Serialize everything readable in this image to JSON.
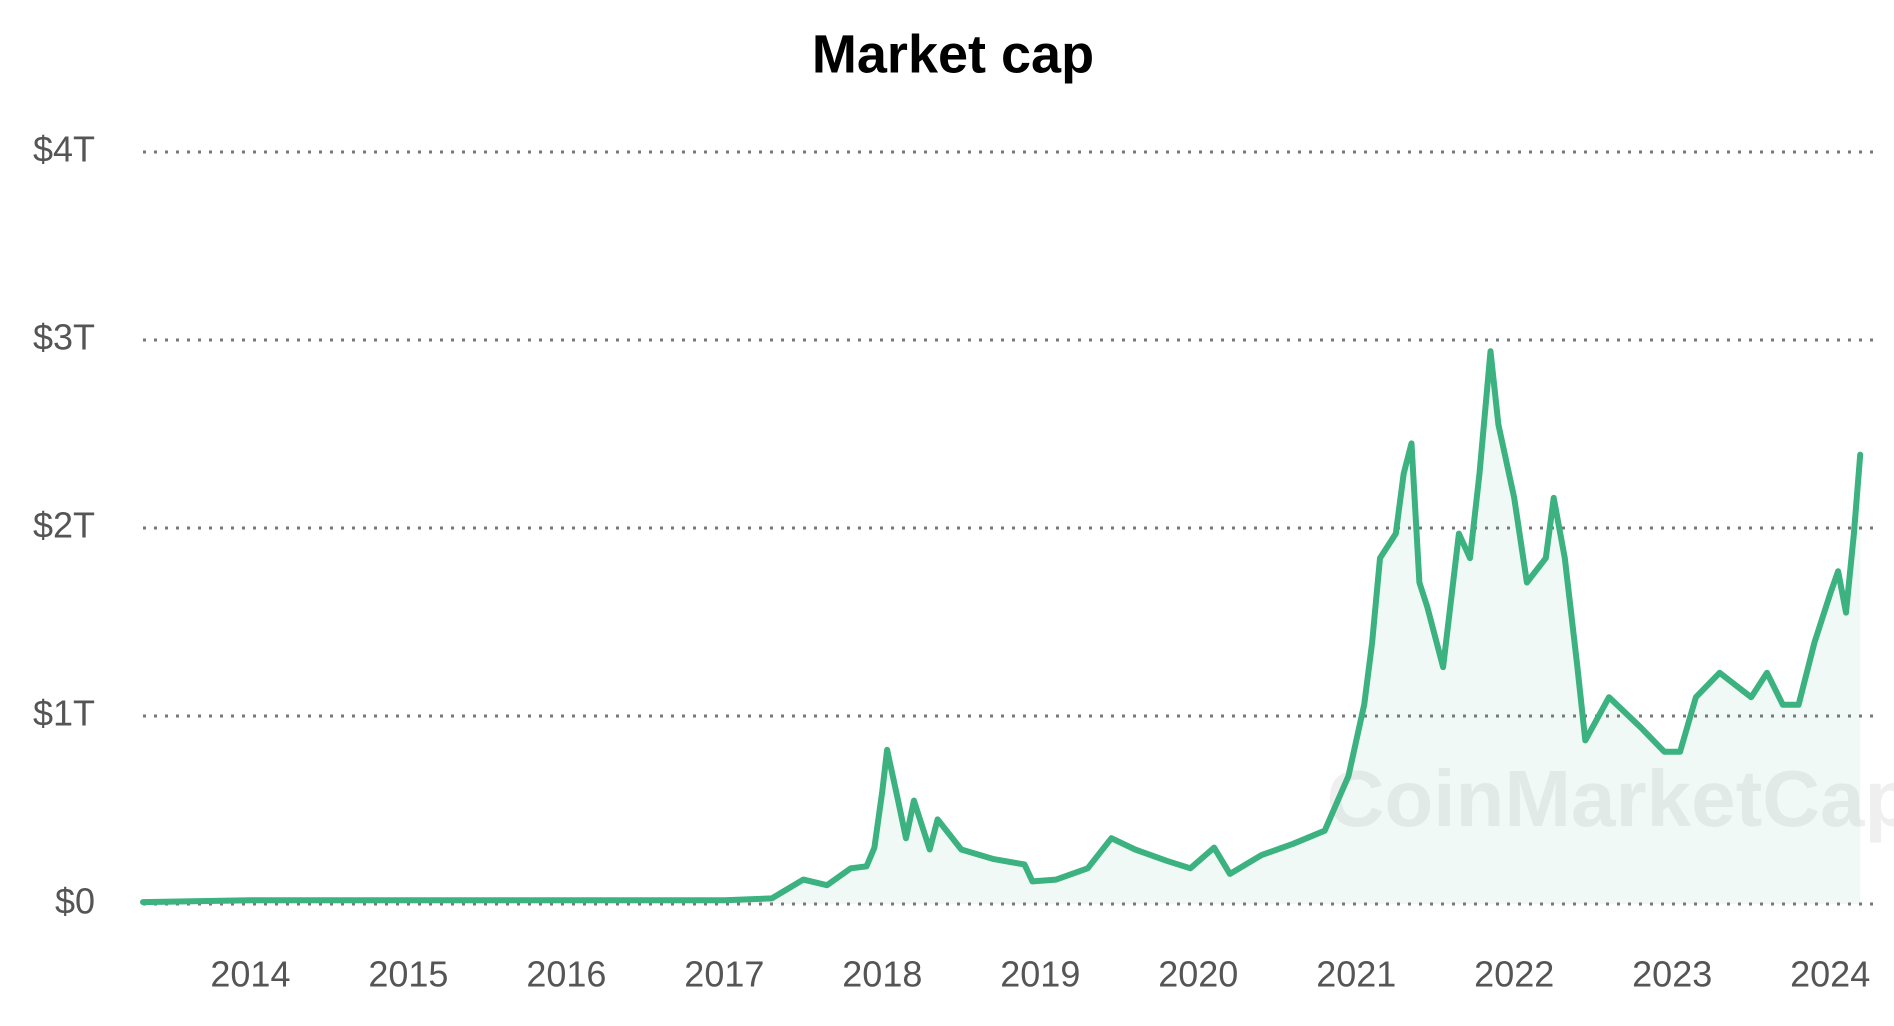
{
  "chart_data": {
    "type": "line",
    "title": "Market cap",
    "watermark": "CoinMarketCap",
    "x": [
      2013.32,
      2014.0,
      2017.0,
      2017.3,
      2017.5,
      2017.65,
      2017.8,
      2017.9,
      2017.95,
      2018.0,
      2018.03,
      2018.1,
      2018.15,
      2018.2,
      2018.3,
      2018.35,
      2018.5,
      2018.7,
      2018.9,
      2018.95,
      2019.1,
      2019.3,
      2019.45,
      2019.6,
      2019.8,
      2019.95,
      2020.1,
      2020.2,
      2020.4,
      2020.6,
      2020.8,
      2020.95,
      2021.05,
      2021.1,
      2021.15,
      2021.25,
      2021.3,
      2021.35,
      2021.4,
      2021.45,
      2021.55,
      2021.65,
      2021.72,
      2021.78,
      2021.85,
      2021.9,
      2022.0,
      2022.08,
      2022.2,
      2022.25,
      2022.32,
      2022.4,
      2022.45,
      2022.6,
      2022.8,
      2022.95,
      2023.05,
      2023.15,
      2023.3,
      2023.5,
      2023.6,
      2023.7,
      2023.8,
      2023.9,
      2024.0,
      2024.05,
      2024.1,
      2024.15,
      2024.19
    ],
    "series": [
      {
        "name": "Market cap",
        "color": "#3bb27f",
        "values": [
          0.01,
          0.02,
          0.02,
          0.03,
          0.13,
          0.1,
          0.19,
          0.2,
          0.3,
          0.6,
          0.82,
          0.55,
          0.35,
          0.55,
          0.29,
          0.45,
          0.29,
          0.24,
          0.21,
          0.12,
          0.13,
          0.19,
          0.35,
          0.29,
          0.23,
          0.19,
          0.3,
          0.16,
          0.26,
          0.32,
          0.39,
          0.68,
          1.06,
          1.39,
          1.84,
          1.97,
          2.29,
          2.45,
          1.71,
          1.58,
          1.26,
          1.97,
          1.84,
          2.29,
          2.94,
          2.55,
          2.16,
          1.71,
          1.84,
          2.16,
          1.84,
          1.26,
          0.87,
          1.1,
          0.94,
          0.81,
          0.81,
          1.1,
          1.23,
          1.1,
          1.23,
          1.06,
          1.06,
          1.39,
          1.65,
          1.77,
          1.55,
          1.97,
          2.39
        ]
      }
    ],
    "xlim": [
      2013.32,
      2024.29
    ],
    "xticks": [
      2014,
      2015,
      2016,
      2017,
      2018,
      2019,
      2020,
      2021,
      2022,
      2023,
      2024
    ],
    "ylim": [
      0,
      4
    ],
    "yticks": [
      {
        "value": 0,
        "label": "$0"
      },
      {
        "value": 1,
        "label": "$1T"
      },
      {
        "value": 2,
        "label": "$2T"
      },
      {
        "value": 3,
        "label": "$3T"
      },
      {
        "value": 4,
        "label": "$4T"
      }
    ],
    "grid": true
  }
}
